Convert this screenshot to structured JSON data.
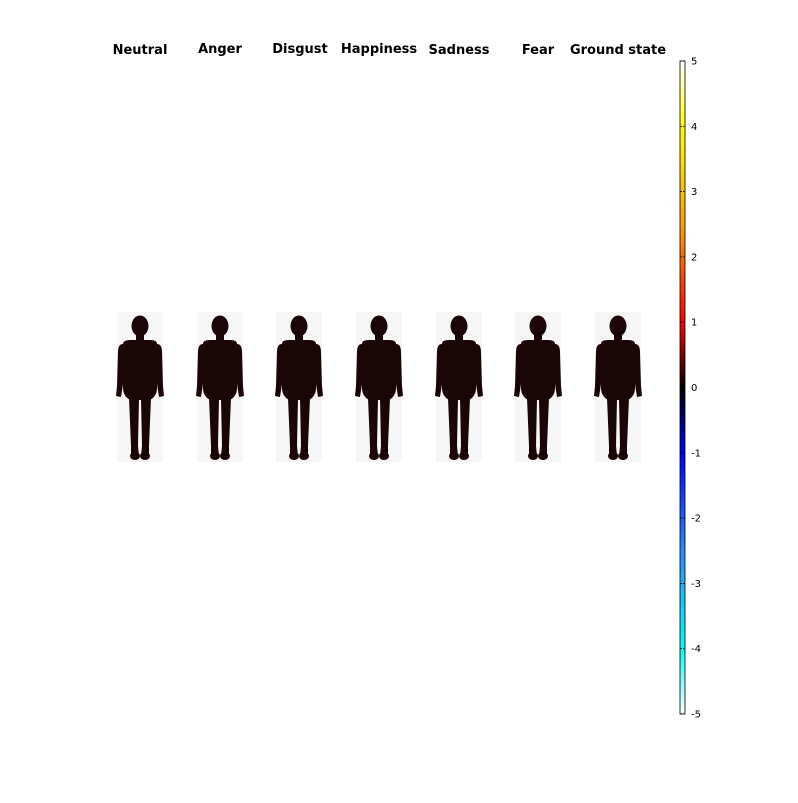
{
  "figure": {
    "panels": [
      {
        "title": "Neutral"
      },
      {
        "title": "Anger"
      },
      {
        "title": "Disgust"
      },
      {
        "title": "Happiness"
      },
      {
        "title": "Sadness"
      },
      {
        "title": "Fear"
      },
      {
        "title": "Ground state"
      }
    ],
    "colorbar": {
      "min": -5,
      "max": 5,
      "ticks": [
        "5",
        "4",
        "3",
        "2",
        "1",
        "0",
        "-1",
        "-2",
        "-3",
        "-4",
        "-5"
      ],
      "positive_colors": [
        "#000000",
        "#ff0000",
        "#ffa000",
        "#ffff00",
        "#ffffff"
      ],
      "negative_colors": [
        "#000000",
        "#0000ff",
        "#2a8cff",
        "#00ffff",
        "#ffffff"
      ]
    }
  }
}
